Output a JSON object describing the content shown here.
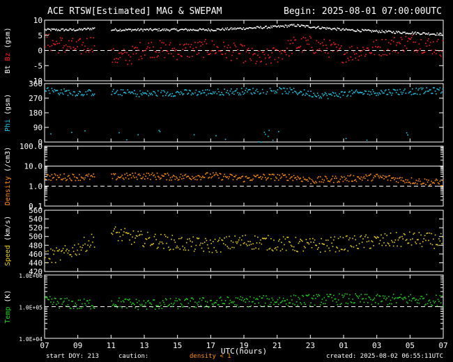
{
  "header": {
    "title": "ACE RTSW[Estimated] MAG & SWEPAM",
    "begin": "Begin: 2025-08-01 07:00:00UTC"
  },
  "footer": {
    "start_doy": "start DOY: 213",
    "caution": "caution:",
    "density_note": "density < 1",
    "created": "created: 2025-08-02 06:55:11UTC"
  },
  "colors": {
    "bt": "#ffffff",
    "bz": "#ff2020",
    "phi": "#20c8e8",
    "density": "#ff9010",
    "speed": "#e8d020",
    "temp": "#20d020",
    "axes": "#ffffff"
  },
  "chart_data": {
    "type": "scatter",
    "xlabel": "UTC(hours)",
    "x_ticks": [
      "07",
      "09",
      "11",
      "13",
      "15",
      "17",
      "19",
      "21",
      "23",
      "01",
      "03",
      "05",
      "07"
    ],
    "xlim_hours": [
      0,
      24
    ],
    "data_gap_hours": [
      3.0,
      4.0
    ],
    "panels": [
      {
        "id": "mag",
        "ylabel_parts": [
          "Bt",
          "Bz",
          "(gsm)"
        ],
        "ylim": [
          -10,
          10
        ],
        "yticks": [
          "10",
          "5",
          "0",
          "-5",
          "-10"
        ],
        "ytick_values": [
          10,
          5,
          0,
          -5,
          -10
        ],
        "dashed_ref": 0,
        "series": [
          {
            "name": "Bt",
            "color": "#ffffff",
            "profile_hours": [
              0,
              2,
              3,
              4,
              6,
              8,
              10,
              12,
              14,
              15,
              16,
              17,
              18,
              20,
              22,
              24
            ],
            "profile_values": [
              7,
              7,
              7.5,
              7,
              7,
              7,
              7,
              7.5,
              8,
              8.5,
              8,
              7.5,
              7,
              6.5,
              6,
              5.5
            ]
          },
          {
            "name": "Bz",
            "color": "#ff2020",
            "profile_hours": [
              0,
              1,
              2,
              3,
              4,
              5,
              6,
              8,
              10,
              12,
              13,
              14,
              15,
              16,
              17,
              18,
              20,
              21,
              22,
              23,
              24
            ],
            "profile_values": [
              3,
              2,
              1,
              3,
              -2,
              -2,
              1,
              0,
              1,
              -1,
              -3,
              -1,
              2,
              2,
              1,
              -1,
              1,
              2,
              3,
              2,
              1
            ]
          }
        ]
      },
      {
        "id": "phi",
        "ylabel_parts": [
          "Phi",
          "(gsm)"
        ],
        "ylim": [
          0,
          360
        ],
        "yticks": [
          "360",
          "270",
          "180",
          "90",
          "0"
        ],
        "ytick_values": [
          360,
          270,
          180,
          90,
          0
        ],
        "series": [
          {
            "name": "Phi",
            "color": "#20c8e8",
            "profile_hours": [
              0,
              2,
              4,
              6,
              8,
              10,
              12,
              14,
              15,
              16,
              17,
              18,
              20,
              22,
              24
            ],
            "profile_values": [
              320,
              305,
              310,
              300,
              305,
              310,
              315,
              320,
              315,
              300,
              290,
              300,
              310,
              315,
              320
            ]
          }
        ]
      },
      {
        "id": "density",
        "ylabel_parts": [
          "Density",
          "(/cm3)"
        ],
        "ylim": [
          0.1,
          100
        ],
        "log": true,
        "yticks": [
          "100.0",
          "10.0",
          "1.0",
          "0.1"
        ],
        "ytick_values": [
          100,
          10,
          1,
          0.1
        ],
        "dashed_ref": 1,
        "series": [
          {
            "name": "Density",
            "color": "#ff9010",
            "profile_hours": [
              0,
              2,
              4,
              6,
              8,
              10,
              11,
              12,
              13,
              14,
              15,
              16,
              18,
              20,
              22,
              24
            ],
            "profile_values": [
              3,
              3,
              3,
              3.5,
              3,
              3.5,
              3,
              2.5,
              3,
              3,
              3,
              2,
              2.5,
              3,
              2,
              1.5
            ]
          }
        ]
      },
      {
        "id": "speed",
        "ylabel_parts": [
          "Speed",
          "(km/s)"
        ],
        "ylim": [
          420,
          560
        ],
        "yticks": [
          "560",
          "540",
          "520",
          "500",
          "480",
          "460",
          "440",
          "420"
        ],
        "ytick_values": [
          560,
          540,
          520,
          500,
          480,
          460,
          440,
          420
        ],
        "series": [
          {
            "name": "Speed",
            "color": "#e8d020",
            "profile_hours": [
              0,
              1,
              2,
              3,
              4,
              5,
              6,
              8,
              10,
              12,
              14,
              16,
              18,
              20,
              22,
              24
            ],
            "profile_values": [
              455,
              460,
              475,
              495,
              510,
              500,
              495,
              485,
              480,
              490,
              485,
              480,
              485,
              490,
              495,
              490
            ]
          }
        ]
      },
      {
        "id": "temp",
        "ylabel_parts": [
          "Temp",
          "(K)"
        ],
        "ylim": [
          10000,
          1000000
        ],
        "log": true,
        "yticks": [
          "1.0E+06",
          "1.0E+05",
          "1.0E+04"
        ],
        "ytick_values": [
          1000000,
          100000,
          10000
        ],
        "dashed_ref": 100000,
        "series": [
          {
            "name": "Temp",
            "color": "#20d020",
            "profile_hours": [
              0,
              2,
              4,
              6,
              8,
              10,
              12,
              14,
              16,
              18,
              20,
              22,
              24
            ],
            "profile_values": [
              150000,
              120000,
              140000,
              120000,
              130000,
              140000,
              150000,
              160000,
              170000,
              180000,
              170000,
              180000,
              160000
            ]
          }
        ]
      }
    ]
  }
}
